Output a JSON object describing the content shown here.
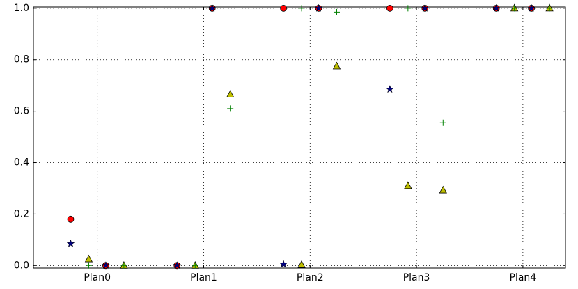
{
  "chart_data": {
    "type": "scatter",
    "xlim": [
      -0.6,
      4.4
    ],
    "xticks": [
      {
        "value": 0,
        "label": "Plan0"
      },
      {
        "value": 1,
        "label": "Plan1"
      },
      {
        "value": 2,
        "label": "Plan2"
      },
      {
        "value": 3,
        "label": "Plan3"
      },
      {
        "value": 4,
        "label": "Plan4"
      }
    ],
    "ylim": [
      -0.01,
      1.005
    ],
    "yticks": [
      {
        "value": 0,
        "label": "0.0"
      },
      0.2,
      0.4,
      0.6,
      0.8,
      {
        "value": 1,
        "label": "1.0"
      }
    ],
    "grid": true,
    "series": [
      {
        "marker": "circle",
        "color": "#ff0000",
        "x": [
          -0.25,
          0.08,
          0.75,
          1.08,
          1.75,
          2.08,
          2.75,
          3.08,
          3.75,
          4.08
        ],
        "values": [
          0.18,
          0,
          0,
          1,
          1,
          1,
          1,
          1,
          1,
          1
        ]
      },
      {
        "marker": "star",
        "color": "#00007f",
        "x": [
          -0.25,
          0.08,
          0.75,
          1.08,
          1.75,
          2.08,
          2.75,
          3.08,
          3.75,
          4.08
        ],
        "values": [
          0.085,
          0,
          0,
          1,
          0.005,
          1,
          0.685,
          1,
          1,
          1
        ]
      },
      {
        "marker": "triangle",
        "color": "#bfbf00",
        "x": [
          -0.08,
          0.25,
          0.92,
          1.25,
          1.92,
          2.25,
          2.92,
          3.25,
          3.92,
          4.25
        ],
        "values": [
          0.025,
          0,
          0,
          0.665,
          0.003,
          0.775,
          0.31,
          0.293,
          1,
          1
        ]
      },
      {
        "marker": "plus",
        "color": "#008000",
        "x": [
          -0.08,
          0.25,
          0.92,
          1.25,
          1.92,
          2.25,
          2.92,
          3.25,
          3.92,
          4.25
        ],
        "values": [
          0,
          0,
          0,
          0.61,
          1,
          0.985,
          1,
          0.555,
          1,
          1
        ]
      }
    ]
  }
}
